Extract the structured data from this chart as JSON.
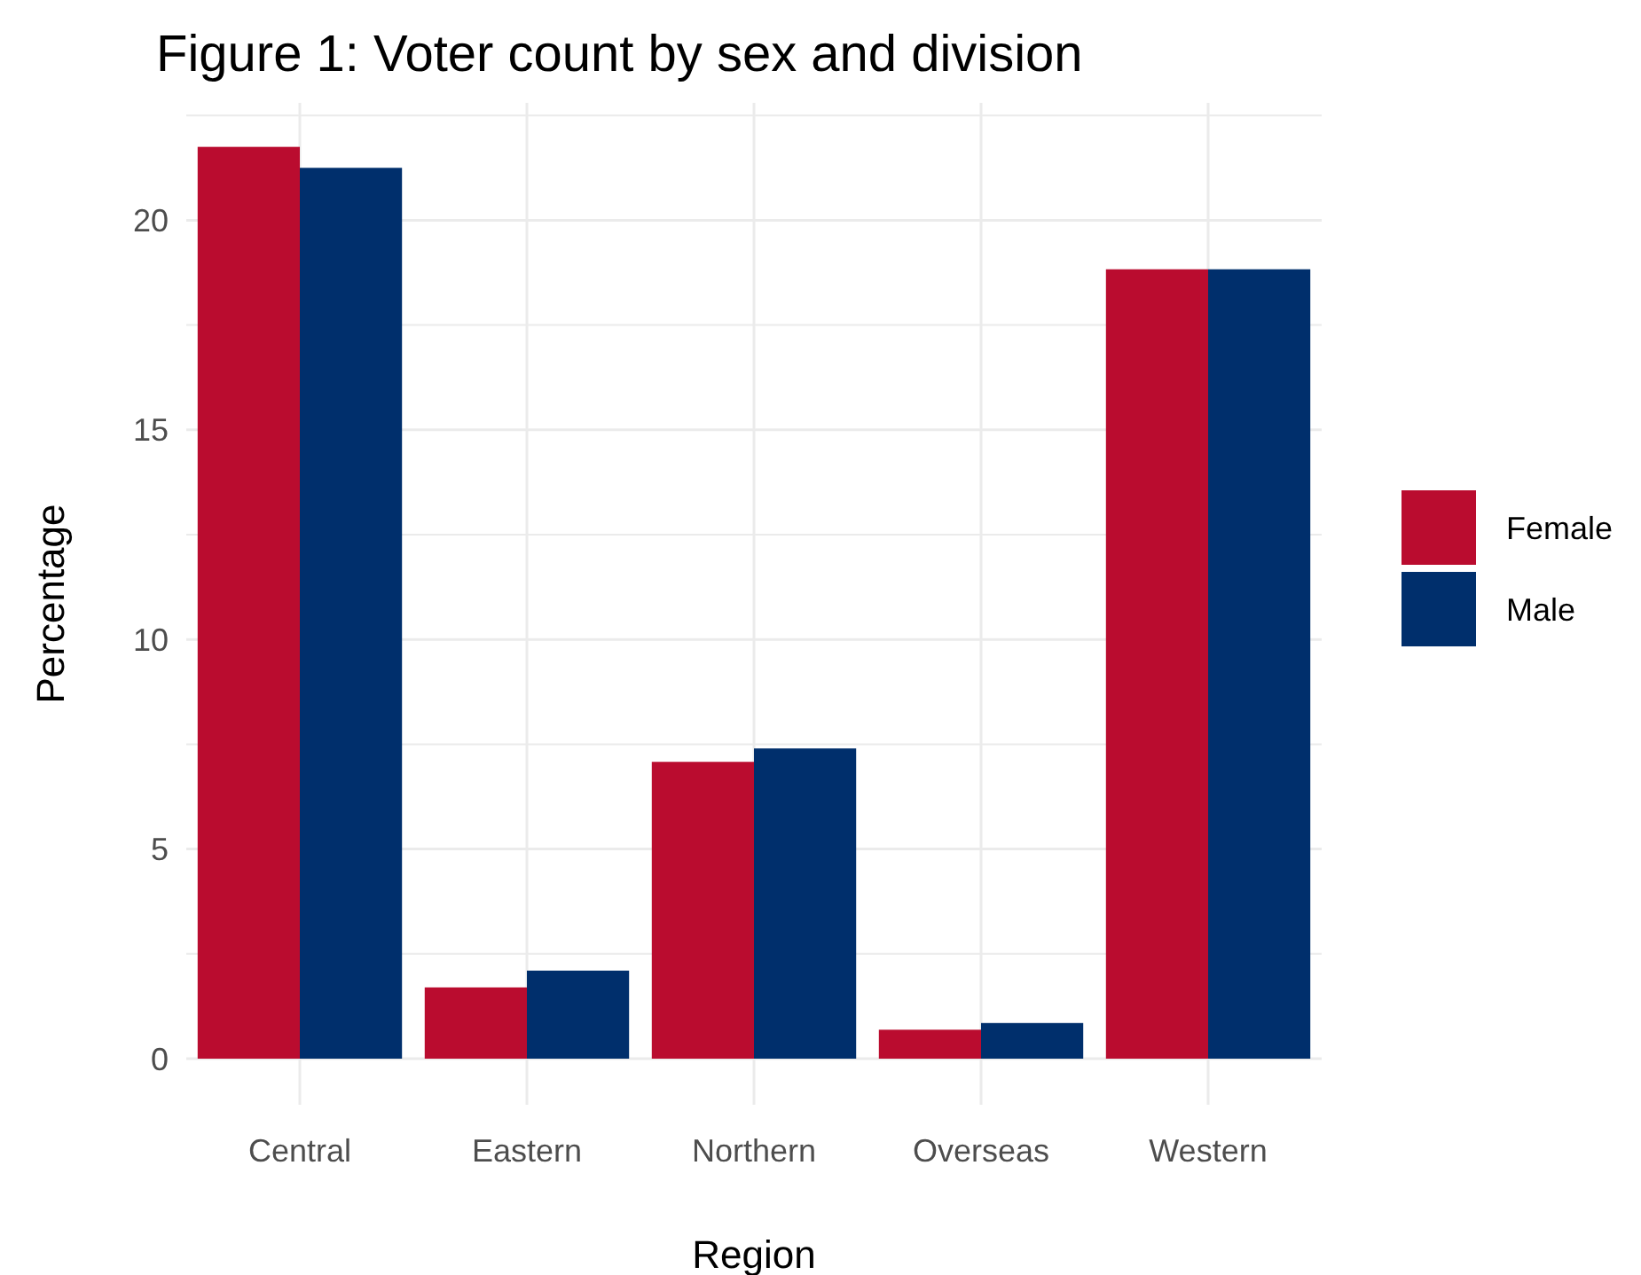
{
  "chart_data": {
    "type": "bar",
    "title": "Figure 1: Voter count by sex and division",
    "xlabel": "Region",
    "ylabel": "Percentage",
    "categories": [
      "Central",
      "Eastern",
      "Northern",
      "Overseas",
      "Western"
    ],
    "series": [
      {
        "name": "Female",
        "color": "#ba0c2f",
        "values": [
          21.75,
          1.7,
          7.08,
          0.69,
          18.83
        ]
      },
      {
        "name": "Male",
        "color": "#002f6c",
        "values": [
          21.25,
          2.1,
          7.4,
          0.85,
          18.83
        ]
      }
    ],
    "ylim": [
      -1.1,
      22.8
    ],
    "yticks": [
      0,
      {
        "value": 2.5,
        "label": null
      },
      5,
      {
        "value": 7.5,
        "label": null
      },
      10,
      {
        "value": 12.5,
        "label": null
      },
      15,
      {
        "value": 17.5,
        "label": null
      },
      20,
      {
        "value": 22.5,
        "label": null
      }
    ],
    "grid": true,
    "legend": "right"
  }
}
